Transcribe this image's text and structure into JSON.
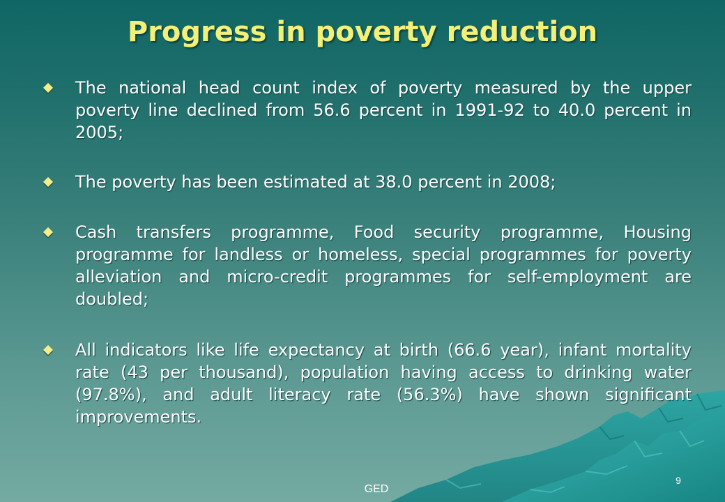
{
  "slide": {
    "title": "Progress in poverty reduction",
    "bullets": [
      "The national head count index of poverty measured by the upper poverty line declined from 56.6 percent in 1991-92 to 40.0 percent in 2005;",
      "The poverty has been estimated at 38.0 percent in 2008;",
      "Cash transfers programme, Food security programme, Housing programme for landless or homeless, special programmes for poverty alleviation and micro-credit programmes for self-employment are doubled;",
      "All indicators like life expectancy at birth (66.6 year), infant mortality rate (43 per thousand), population having access to drinking water (97.8%), and adult literacy rate (56.3%) have shown significant improvements."
    ],
    "footer_text": "GED",
    "page_number": "9"
  },
  "colors": {
    "title": "#f3f07a",
    "bullet_marker": "#f3ee8a",
    "body_text": "#ffffff",
    "background_top": "#0f6664",
    "background_bottom": "#74aaa2",
    "mountain": "#1c9a9a"
  }
}
